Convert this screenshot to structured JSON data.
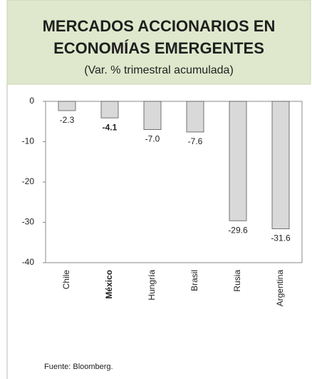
{
  "chart_data": {
    "type": "bar",
    "title_lines": [
      "MERCADOS ACCIONARIOS EN",
      "ECONOMÍAS EMERGENTES"
    ],
    "subtitle": "(Var. % trimestral acumulada)",
    "categories": [
      "Chile",
      "México",
      "Hungría",
      "Brasil",
      "Rusia",
      "Argentina"
    ],
    "values": [
      -2.3,
      -4.1,
      -7.0,
      -7.6,
      -29.6,
      -31.6
    ],
    "value_labels": [
      "-2.3",
      "-4.1",
      "-7.0",
      "-7.6",
      "-29.6",
      "-31.6"
    ],
    "highlight": "México",
    "color": "#d9d9d9",
    "ylim": [
      -40,
      0
    ],
    "yticks": [
      0,
      -10,
      -20,
      -30,
      -40
    ],
    "grid": false,
    "source": "Fuente: Bloomberg."
  }
}
